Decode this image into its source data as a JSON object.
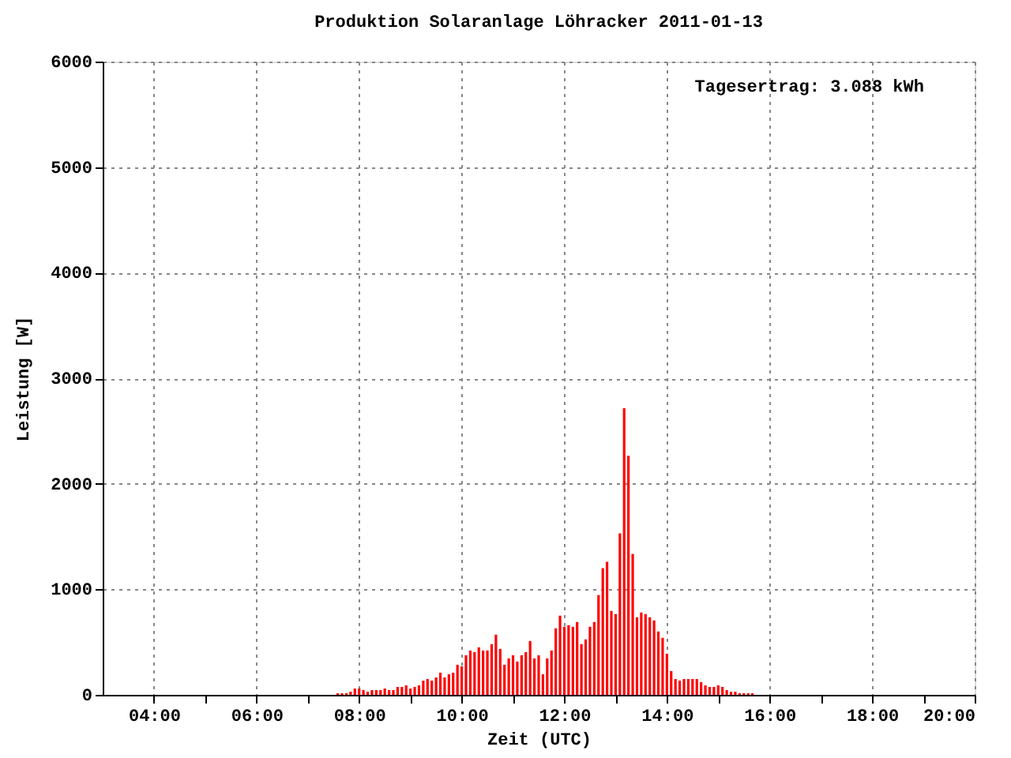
{
  "chart_data": {
    "type": "bar",
    "title": "Produktion Solaranlage Löhracker 2011-01-13",
    "xlabel": "Zeit (UTC)",
    "ylabel": "Leistung [W]",
    "annotations": [
      "Tagesertrag: 3.088 kWh"
    ],
    "xlim": [
      3,
      20
    ],
    "xticks": [
      {
        "value": 4,
        "label": "04:00"
      },
      {
        "value": 5,
        "label": null
      },
      {
        "value": 6,
        "label": "06:00"
      },
      {
        "value": 7,
        "label": null
      },
      {
        "value": 8,
        "label": "08:00"
      },
      {
        "value": 9,
        "label": null
      },
      {
        "value": 10,
        "label": "10:00"
      },
      {
        "value": 11,
        "label": null
      },
      {
        "value": 12,
        "label": "12:00"
      },
      {
        "value": 13,
        "label": null
      },
      {
        "value": 14,
        "label": "14:00"
      },
      {
        "value": 15,
        "label": null
      },
      {
        "value": 16,
        "label": "16:00"
      },
      {
        "value": 17,
        "label": null
      },
      {
        "value": 18,
        "label": "18:00"
      },
      {
        "value": 19,
        "label": null
      },
      {
        "value": 20,
        "label": "20:00"
      }
    ],
    "ylim": [
      0,
      6000
    ],
    "yticks": [
      0,
      1000,
      2000,
      3000,
      4000,
      5000,
      6000
    ],
    "grid": true,
    "x": [
      7.5833,
      7.6667,
      7.75,
      7.8333,
      7.9167,
      8,
      8.0833,
      8.1667,
      8.25,
      8.3333,
      8.4167,
      8.5,
      8.5833,
      8.6667,
      8.75,
      8.8333,
      8.9167,
      9,
      9.0833,
      9.1667,
      9.25,
      9.3333,
      9.4167,
      9.5,
      9.5833,
      9.6667,
      9.75,
      9.8333,
      9.9167,
      10,
      10.0833,
      10.1667,
      10.25,
      10.3333,
      10.4167,
      10.5,
      10.5833,
      10.6667,
      10.75,
      10.8333,
      10.9167,
      11,
      11.0833,
      11.1667,
      11.25,
      11.3333,
      11.4167,
      11.5,
      11.5833,
      11.6667,
      11.75,
      11.8333,
      11.9167,
      12,
      12.0833,
      12.1667,
      12.25,
      12.3333,
      12.4167,
      12.5,
      12.5833,
      12.6667,
      12.75,
      12.8333,
      12.9167,
      13,
      13.0833,
      13.1667,
      13.25,
      13.3333,
      13.4167,
      13.5,
      13.5833,
      13.6667,
      13.75,
      13.8333,
      13.9167,
      14,
      14.0833,
      14.1667,
      14.25,
      14.3333,
      14.4167,
      14.5,
      14.5833,
      14.6667,
      14.75,
      14.8333,
      14.9167,
      15,
      15.0833,
      15.1667,
      15.25,
      15.3333,
      15.4167,
      15.5,
      15.5833,
      15.6667
    ],
    "series": [
      {
        "color": "#ff0000",
        "values": [
          15,
          15,
          15,
          30,
          60,
          60,
          45,
          30,
          45,
          45,
          45,
          60,
          45,
          45,
          75,
          75,
          90,
          60,
          75,
          90,
          135,
          150,
          135,
          165,
          210,
          165,
          195,
          210,
          285,
          270,
          375,
          420,
          405,
          450,
          420,
          420,
          480,
          570,
          435,
          285,
          345,
          375,
          315,
          375,
          405,
          510,
          345,
          375,
          195,
          345,
          420,
          630,
          750,
          645,
          660,
          645,
          690,
          480,
          525,
          645,
          690,
          945,
          1200,
          1260,
          795,
          765,
          1530,
          2715,
          2265,
          1335,
          735,
          780,
          765,
          735,
          705,
          600,
          540,
          390,
          225,
          150,
          135,
          150,
          150,
          150,
          150,
          120,
          90,
          75,
          75,
          90,
          75,
          45,
          30,
          30,
          15,
          15,
          15,
          15
        ]
      }
    ]
  }
}
